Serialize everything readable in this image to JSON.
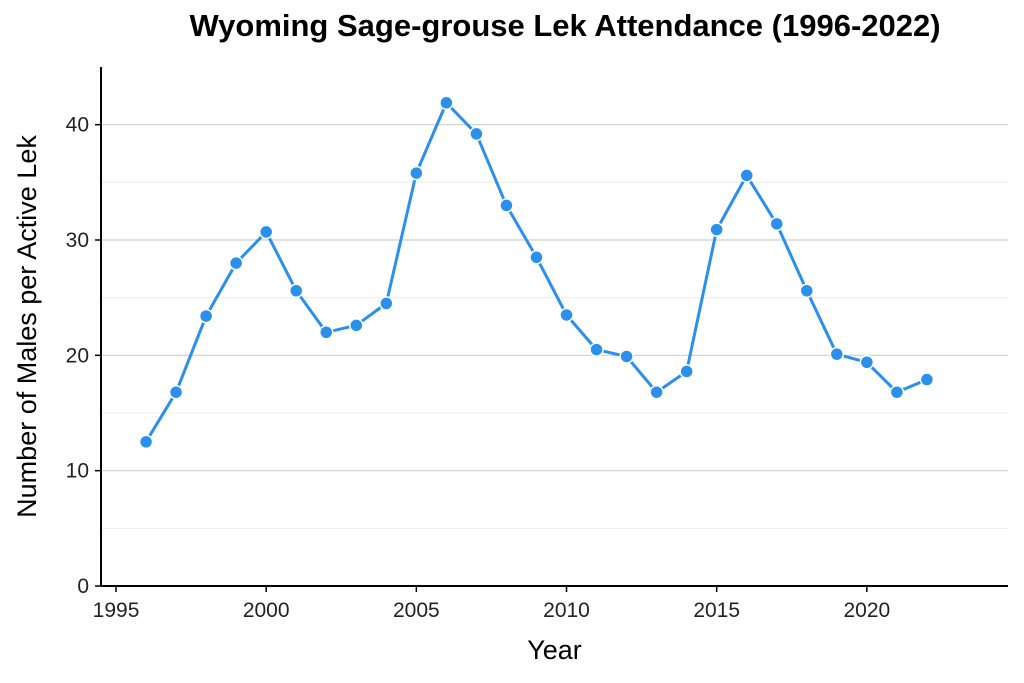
{
  "chart_data": {
    "type": "line",
    "title": "Wyoming Sage-grouse Lek Attendance (1996-2022)",
    "xlabel": "Year",
    "ylabel": "Number of Males per Active Lek",
    "xlim": [
      1994.5,
      2024.7
    ],
    "ylim": [
      0,
      45
    ],
    "x_ticks": [
      1995,
      2000,
      2005,
      2010,
      2015,
      2020
    ],
    "y_ticks": [
      0,
      10,
      20,
      30,
      40
    ],
    "grid": "horizontal",
    "series": [
      {
        "color": "#2b8fec",
        "x": [
          1996,
          1997,
          1998,
          1999,
          2000,
          2001,
          2002,
          2003,
          2004,
          2005,
          2006,
          2007,
          2008,
          2009,
          2010,
          2011,
          2012,
          2013,
          2014,
          2015,
          2016,
          2017,
          2018,
          2019,
          2020,
          2021,
          2022
        ],
        "y": [
          12.5,
          16.8,
          23.4,
          28.0,
          30.7,
          25.6,
          22.0,
          22.6,
          24.5,
          35.8,
          41.9,
          39.2,
          33.0,
          28.5,
          23.5,
          20.5,
          19.9,
          16.8,
          18.6,
          30.9,
          35.6,
          31.4,
          25.6,
          20.1,
          19.4,
          16.8,
          17.9
        ]
      }
    ]
  }
}
